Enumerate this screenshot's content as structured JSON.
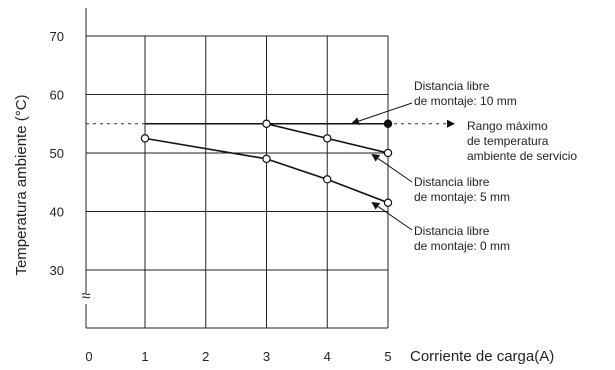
{
  "chart_data": {
    "type": "line",
    "title": "",
    "xlabel": "Corriente de carga(A)",
    "ylabel": "Temperatura ambiente (°C)",
    "xlim": [
      0,
      5
    ],
    "ylim": [
      20,
      70
    ],
    "x_ticks": [
      0,
      1,
      2,
      3,
      4,
      5
    ],
    "y_ticks": [
      30,
      40,
      50,
      60,
      70
    ],
    "grid": true,
    "axis_break": "≈",
    "series": [
      {
        "name": "Distancia libre de montaje: 10 mm",
        "x": [
          1,
          3,
          5
        ],
        "y": [
          55,
          55,
          55
        ],
        "end_marker": "filled"
      },
      {
        "name": "Distancia libre de montaje: 5 mm",
        "x": [
          3,
          4,
          5
        ],
        "y": [
          55,
          52.5,
          50
        ],
        "end_marker": "open"
      },
      {
        "name": "Distancia libre de montaje: 0 mm",
        "x": [
          1,
          3,
          4,
          5
        ],
        "y": [
          52.5,
          49,
          45.5,
          41.5
        ],
        "end_marker": "open"
      }
    ],
    "reference_line": {
      "y": 55,
      "style": "dotted",
      "label": "Rango máximo de temperatura ambiente de servicio"
    },
    "annotations": [
      {
        "lines": [
          "Distancia libre",
          "de montaje: 10 mm"
        ]
      },
      {
        "lines": [
          "Rango máximo",
          "de temperatura",
          "ambiente de servicio"
        ]
      },
      {
        "lines": [
          "Distancia libre",
          "de montaje: 5 mm"
        ]
      },
      {
        "lines": [
          "Distancia libre",
          "de montaje: 0 mm"
        ]
      }
    ]
  }
}
